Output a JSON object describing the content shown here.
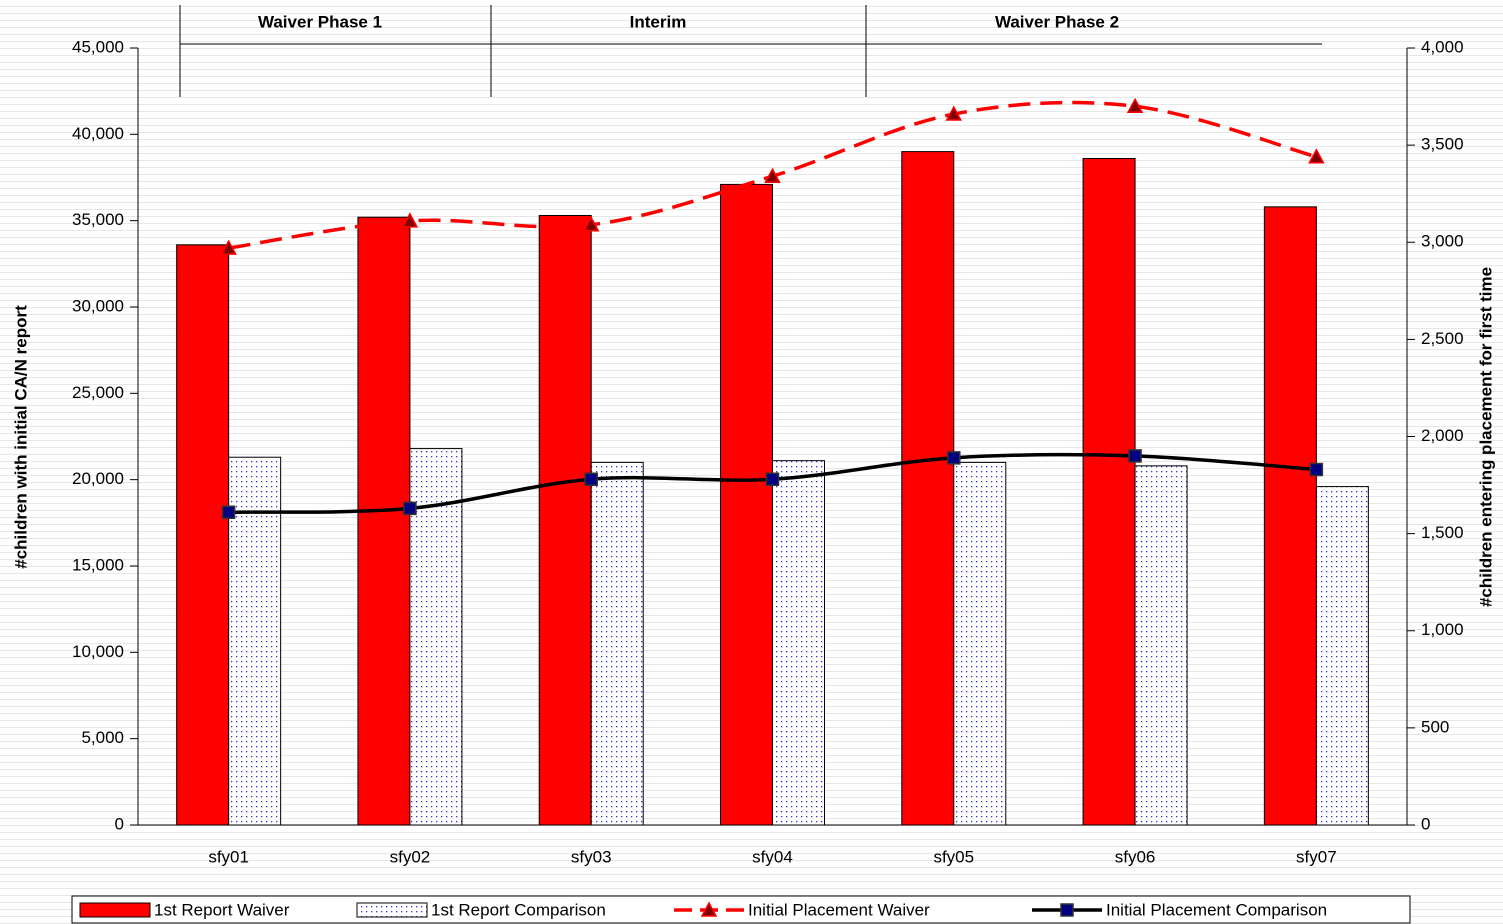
{
  "chart_data": {
    "type": "bar",
    "categories": [
      "sfy01",
      "sfy02",
      "sfy03",
      "sfy04",
      "sfy05",
      "sfy06",
      "sfy07"
    ],
    "phases": [
      "Waiver Phase 1",
      "Interim",
      "Waiver Phase 2"
    ],
    "ylabel": "#children with initial CA/N report",
    "y2label": "#children entering placement for first time",
    "ylim": [
      0,
      45000
    ],
    "yticks": [
      0,
      {
        "value": 5000,
        "label": "5,000"
      },
      {
        "value": 10000,
        "label": "10,000"
      },
      {
        "value": 15000,
        "label": "15,000"
      },
      {
        "value": 20000,
        "label": "20,000"
      },
      {
        "value": 25000,
        "label": "25,000"
      },
      {
        "value": 30000,
        "label": "30,000"
      },
      {
        "value": 35000,
        "label": "35,000"
      },
      {
        "value": 40000,
        "label": "40,000"
      },
      {
        "value": 45000,
        "label": "45,000"
      }
    ],
    "y2lim": [
      0,
      4000
    ],
    "y2ticks": [
      0,
      500,
      {
        "value": 1000,
        "label": "1,000"
      },
      {
        "value": 1500,
        "label": "1,500"
      },
      {
        "value": 2000,
        "label": "2,000"
      },
      {
        "value": 2500,
        "label": "2,500"
      },
      {
        "value": 3000,
        "label": "3,000"
      },
      {
        "value": 3500,
        "label": "3,500"
      },
      {
        "value": 4000,
        "label": "4,000"
      }
    ],
    "legend": "bottom",
    "series": [
      {
        "name": "1st Report Waiver",
        "type": "bar",
        "color": "#ff0000",
        "values": [
          33600,
          35200,
          35300,
          37100,
          39000,
          38600,
          35800
        ]
      },
      {
        "name": "1st Report Comparison",
        "type": "bar",
        "color": "#3333cc",
        "pattern": "dots",
        "values": [
          21300,
          21800,
          21000,
          21100,
          21000,
          20800,
          19600
        ]
      },
      {
        "name": "Initial Placement Waiver",
        "type": "line",
        "axis": "y2",
        "color": "#ff0000",
        "dash": true,
        "marker": "triangle",
        "values": [
          2970,
          3110,
          3090,
          3340,
          3660,
          3700,
          3440
        ]
      },
      {
        "name": "Initial Placement Comparison",
        "type": "line",
        "axis": "y2",
        "color": "#000000",
        "marker": "square",
        "values": [
          1610,
          1630,
          1780,
          1780,
          1890,
          1900,
          1830
        ]
      }
    ]
  }
}
